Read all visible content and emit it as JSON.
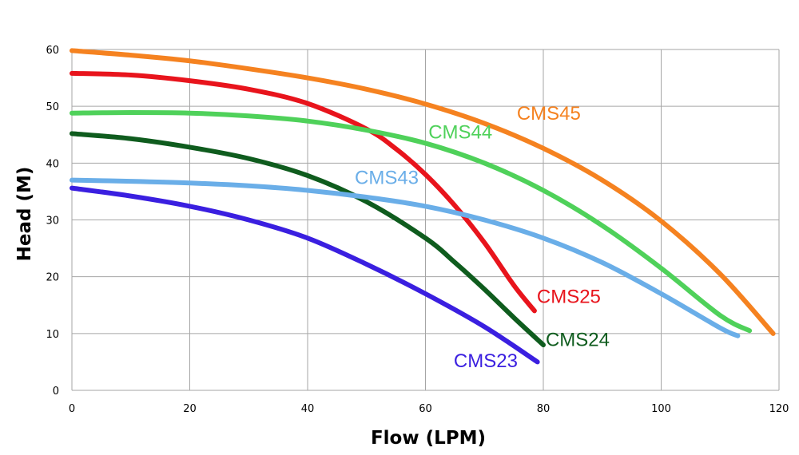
{
  "chart_data": {
    "type": "line",
    "title": "",
    "xlabel": "Flow (LPM)",
    "ylabel": "Head (M)",
    "xlim": [
      0,
      120
    ],
    "ylim": [
      0,
      60
    ],
    "x_ticks": [
      0,
      20,
      40,
      60,
      80,
      100,
      120
    ],
    "y_ticks": [
      0,
      10,
      20,
      30,
      40,
      50,
      60
    ],
    "grid": true,
    "legend": "direct labels near curves",
    "series": [
      {
        "name": "CMS45",
        "color": "#f58220",
        "x": [
          0,
          10,
          20,
          30,
          40,
          50,
          60,
          70,
          80,
          90,
          100,
          110,
          119
        ],
        "y": [
          59.8,
          59.0,
          58.0,
          56.6,
          55.0,
          53.0,
          50.4,
          47.0,
          42.6,
          37.0,
          29.8,
          20.5,
          10.0
        ]
      },
      {
        "name": "CMS25",
        "color": "#e8141c",
        "x": [
          0,
          10,
          20,
          30,
          40,
          50,
          55,
          60,
          65,
          70,
          75,
          78.5
        ],
        "y": [
          55.8,
          55.5,
          54.5,
          53.0,
          50.5,
          46.0,
          42.5,
          38.0,
          32.5,
          26.0,
          18.5,
          14.0
        ]
      },
      {
        "name": "CMS44",
        "color": "#4fd15a",
        "x": [
          0,
          10,
          20,
          30,
          40,
          50,
          60,
          70,
          80,
          90,
          100,
          110,
          115
        ],
        "y": [
          48.8,
          48.9,
          48.8,
          48.3,
          47.4,
          45.8,
          43.5,
          40.0,
          35.2,
          29.0,
          21.5,
          13.2,
          10.5
        ]
      },
      {
        "name": "CMS24",
        "color": "#0f5c1e",
        "x": [
          0,
          10,
          20,
          30,
          40,
          50,
          60,
          65,
          70,
          75,
          80
        ],
        "y": [
          45.2,
          44.3,
          42.8,
          40.8,
          37.8,
          33.2,
          26.8,
          22.5,
          17.8,
          12.8,
          8.0
        ]
      },
      {
        "name": "CMS43",
        "color": "#6aaee8",
        "x": [
          0,
          10,
          20,
          30,
          40,
          50,
          60,
          70,
          80,
          90,
          100,
          110,
          113
        ],
        "y": [
          37.0,
          36.8,
          36.5,
          36.0,
          35.2,
          34.0,
          32.4,
          30.0,
          26.8,
          22.5,
          17.0,
          11.0,
          9.6
        ]
      },
      {
        "name": "CMS23",
        "color": "#3a1fe0",
        "x": [
          0,
          10,
          20,
          30,
          40,
          50,
          60,
          70,
          79
        ],
        "y": [
          35.6,
          34.2,
          32.4,
          30.0,
          26.8,
          22.2,
          17.0,
          11.2,
          5.0
        ]
      }
    ],
    "annotations": [
      {
        "text": "CMS45",
        "x": 75.5,
        "y": 47.6,
        "color": "#f58220"
      },
      {
        "text": "CMS44",
        "x": 60.5,
        "y": 44.3,
        "color": "#4fd15a"
      },
      {
        "text": "CMS43",
        "x": 48.0,
        "y": 36.3,
        "color": "#6aaee8"
      },
      {
        "text": "CMS25",
        "x": 78.9,
        "y": 15.4,
        "color": "#e8141c"
      },
      {
        "text": "CMS24",
        "x": 80.4,
        "y": 7.8,
        "color": "#0f5c1e"
      },
      {
        "text": "CMS23",
        "x": 64.8,
        "y": 4.1,
        "color": "#3a1fe0"
      }
    ]
  }
}
